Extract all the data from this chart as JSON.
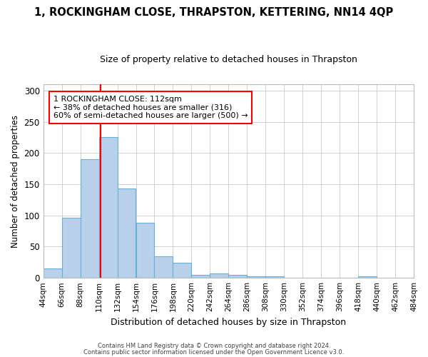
{
  "title": "1, ROCKINGHAM CLOSE, THRAPSTON, KETTERING, NN14 4QP",
  "subtitle": "Size of property relative to detached houses in Thrapston",
  "xlabel": "Distribution of detached houses by size in Thrapston",
  "ylabel": "Number of detached properties",
  "footnote1": "Contains HM Land Registry data © Crown copyright and database right 2024.",
  "footnote2": "Contains public sector information licensed under the Open Government Licence v3.0.",
  "bin_edges": [
    44,
    66,
    88,
    110,
    132,
    154,
    176,
    198,
    220,
    242,
    264,
    286,
    308,
    330,
    352,
    374,
    396,
    418,
    440,
    462,
    484
  ],
  "bar_heights": [
    15,
    96,
    190,
    225,
    143,
    88,
    34,
    24,
    5,
    7,
    5,
    3,
    2,
    0,
    0,
    0,
    0,
    3,
    0,
    0
  ],
  "bar_color": "#b8d0ea",
  "bar_edge_color": "#6aaed6",
  "grid_color": "#d0d0d0",
  "bg_color": "#ffffff",
  "red_line_x": 112,
  "annotation_text": "1 ROCKINGHAM CLOSE: 112sqm\n← 38% of detached houses are smaller (316)\n60% of semi-detached houses are larger (500) →",
  "annotation_box_color": "white",
  "annotation_box_edge": "red",
  "ylim": [
    0,
    310
  ],
  "xlim": [
    44,
    484
  ],
  "title_fontsize": 10.5,
  "subtitle_fontsize": 9,
  "ylabel_fontsize": 8.5,
  "xlabel_fontsize": 9,
  "tick_fontsize": 7.5,
  "annotation_fontsize": 8,
  "footnote_fontsize": 6
}
